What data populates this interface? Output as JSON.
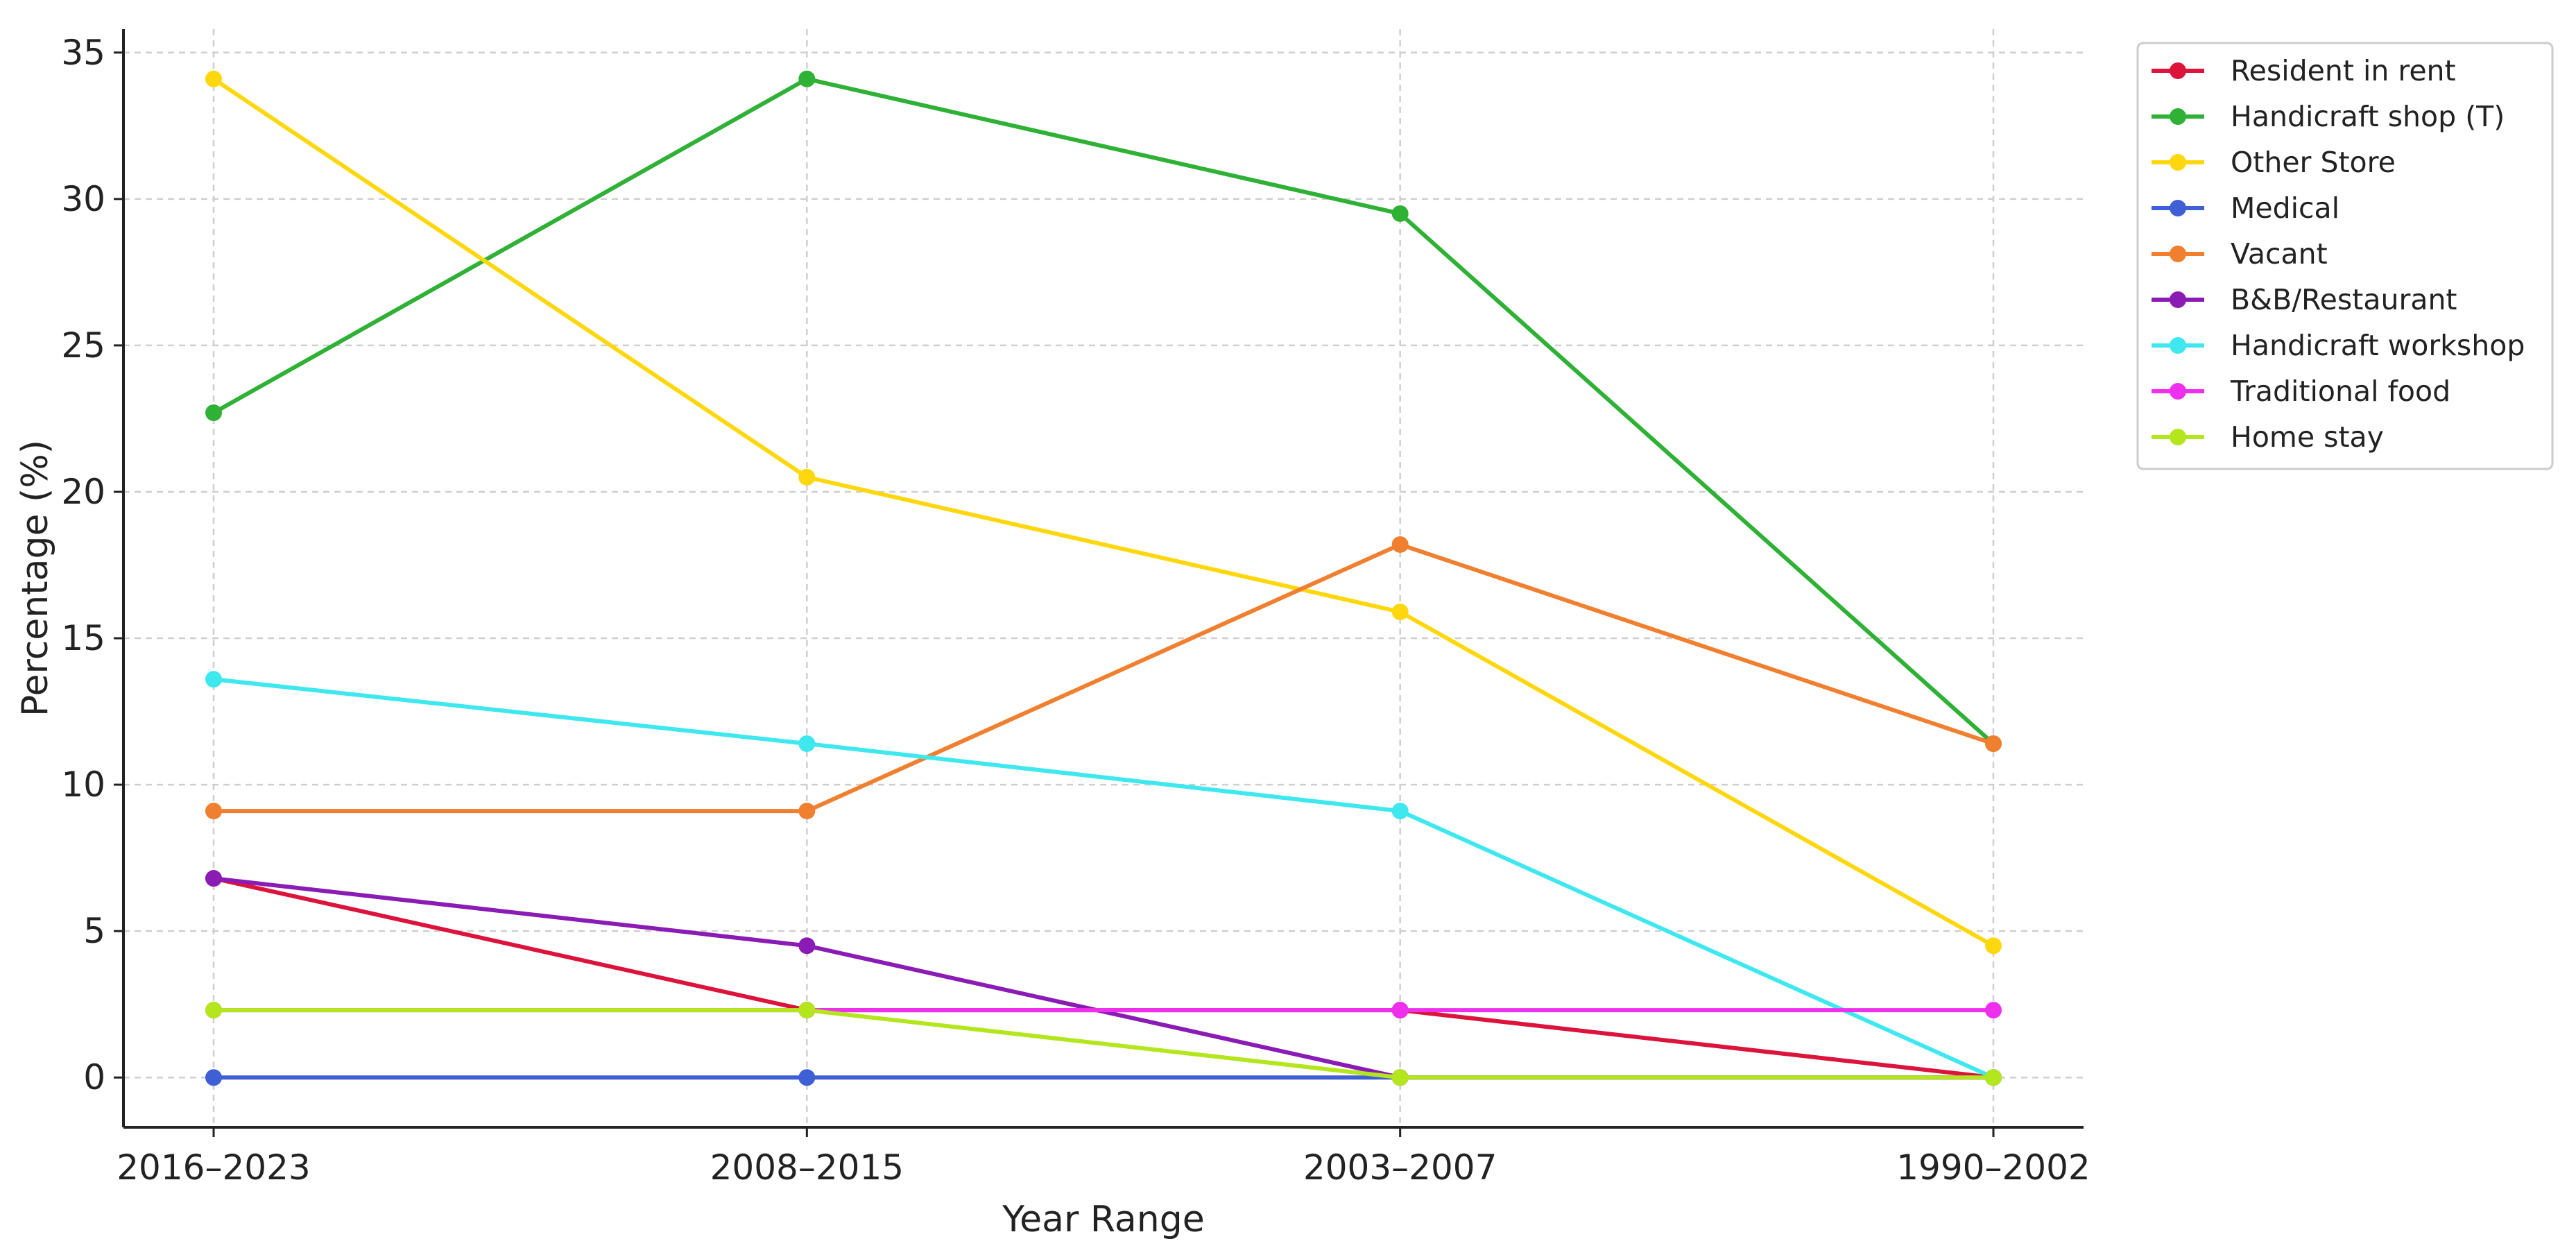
{
  "chart_data": {
    "type": "line",
    "title": "",
    "xlabel": "Year Range",
    "ylabel": "Percentage (%)",
    "categories": [
      "2016–2023",
      "2008–2015",
      "2003–2007",
      "1990–2002"
    ],
    "ylim": [
      -1.7,
      35.8
    ],
    "yticks": [
      0,
      5,
      10,
      15,
      20,
      25,
      30,
      35
    ],
    "grid": true,
    "legend_position": "outside-top-right",
    "series": [
      {
        "name": "Resident in rent",
        "color": "#dc143c",
        "values": [
          6.8,
          2.3,
          2.3,
          0
        ]
      },
      {
        "name": "Handicraft shop (T)",
        "color": "#2eb135",
        "values": [
          22.7,
          34.1,
          29.5,
          11.4
        ]
      },
      {
        "name": "Other Store",
        "color": "#ffd70f",
        "values": [
          34.1,
          20.5,
          15.9,
          4.5
        ]
      },
      {
        "name": "Medical",
        "color": "#3f5fd4",
        "values": [
          0,
          0,
          0,
          0
        ]
      },
      {
        "name": "Vacant",
        "color": "#f08030",
        "values": [
          9.1,
          9.1,
          18.2,
          11.4
        ]
      },
      {
        "name": "B&B/Restaurant",
        "color": "#8b1bb5",
        "values": [
          6.8,
          4.5,
          0,
          0
        ]
      },
      {
        "name": "Handicraft workshop",
        "color": "#3fe8ee",
        "values": [
          13.6,
          11.4,
          9.1,
          0
        ]
      },
      {
        "name": "Traditional food",
        "color": "#ee2fee",
        "values": [
          2.3,
          2.3,
          2.3,
          2.3
        ]
      },
      {
        "name": "Home stay",
        "color": "#b4e61e",
        "values": [
          2.3,
          2.3,
          0,
          0
        ]
      }
    ]
  }
}
